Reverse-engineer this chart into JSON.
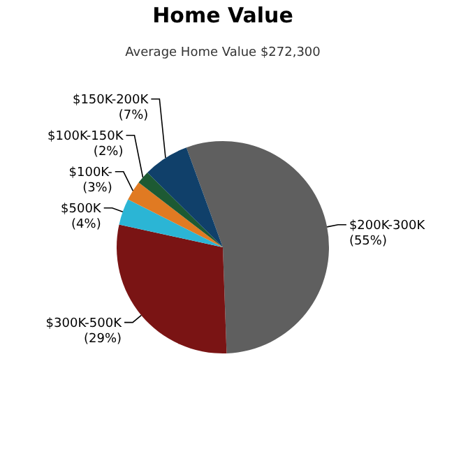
{
  "chart_data": {
    "type": "pie",
    "title": "Home Value",
    "subtitle": "Average Home Value  $272,300",
    "categories": [
      "$200K-300K",
      "$300K-500K",
      "$500K",
      "$100K-",
      "$100K-150K",
      "$150K-200K"
    ],
    "values": [
      55,
      29,
      4,
      3,
      2,
      7
    ],
    "value_labels": [
      "(55%)",
      "(29%)",
      "(4%)",
      "(3%)",
      "(2%)",
      "(7%)"
    ],
    "colors": [
      "#5f5f5f",
      "#7a1414",
      "#2bb5d5",
      "#e07a22",
      "#1d5a33",
      "#10406a"
    ]
  }
}
